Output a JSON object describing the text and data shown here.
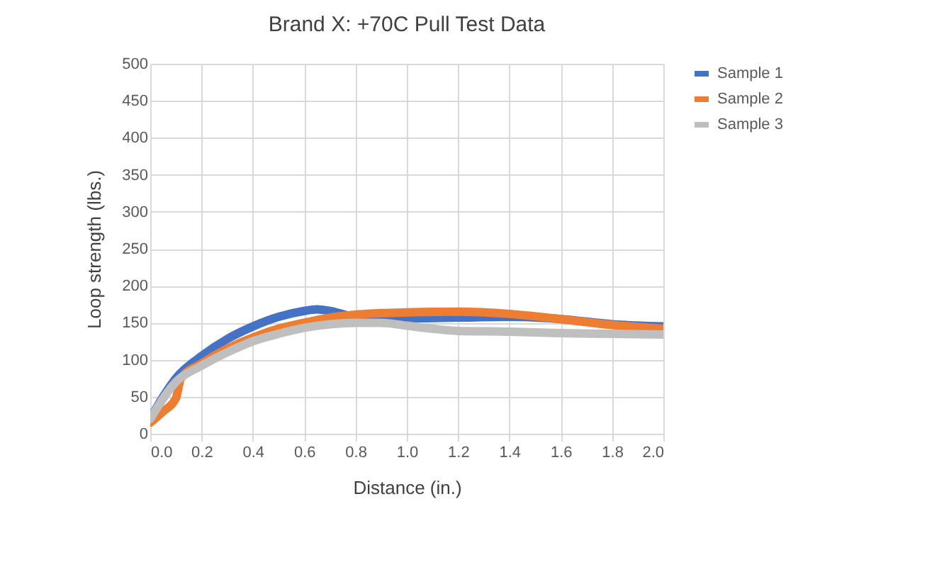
{
  "chart_data": {
    "type": "line",
    "title": "Brand X:  +70C Pull Test Data",
    "xlabel": "Distance (in.)",
    "ylabel": "Loop strength (lbs.)",
    "xlim": [
      0,
      2
    ],
    "xticks": [
      {
        "value": 0,
        "label": "0.0"
      },
      {
        "value": 0.2,
        "label": "0.2"
      },
      {
        "value": 0.4,
        "label": "0.4"
      },
      {
        "value": 0.6,
        "label": "0.6"
      },
      {
        "value": 0.8,
        "label": "0.8"
      },
      {
        "value": 1,
        "label": "1.0"
      },
      {
        "value": 1.2,
        "label": "1.2"
      },
      {
        "value": 1.4,
        "label": "1.4"
      },
      {
        "value": 1.6,
        "label": "1.6"
      },
      {
        "value": 1.8,
        "label": "1.8"
      },
      {
        "value": 2,
        "label": "2.0"
      }
    ],
    "ylim": [
      0,
      500
    ],
    "yticks": [
      0,
      50,
      100,
      150,
      200,
      250,
      300,
      350,
      400,
      450,
      500
    ],
    "grid": true,
    "legend": "right",
    "series": [
      {
        "name": "Sample 1",
        "color": "#4472c4",
        "x": [
          0,
          0.05,
          0.1,
          0.2,
          0.3,
          0.4,
          0.5,
          0.6,
          0.65,
          0.7,
          0.8,
          0.9,
          1.0,
          1.2,
          1.4,
          1.6,
          1.8,
          2.0
        ],
        "values": [
          20,
          50,
          75,
          105,
          128,
          145,
          158,
          166,
          168,
          166,
          158,
          157,
          156,
          157,
          158,
          155,
          148,
          145
        ]
      },
      {
        "name": "Sample 2",
        "color": "#ed7d31",
        "x": [
          0,
          0.05,
          0.1,
          0.12,
          0.2,
          0.3,
          0.4,
          0.5,
          0.6,
          0.7,
          0.8,
          0.9,
          1.0,
          1.2,
          1.4,
          1.6,
          1.8,
          2.0
        ],
        "values": [
          15,
          30,
          48,
          75,
          95,
          115,
          130,
          142,
          150,
          157,
          161,
          163,
          164,
          165,
          162,
          155,
          147,
          142
        ]
      },
      {
        "name": "Sample 3",
        "color": "#bfbfbf",
        "x": [
          0,
          0.1,
          0.2,
          0.3,
          0.4,
          0.5,
          0.6,
          0.7,
          0.8,
          0.9,
          1.0,
          1.1,
          1.2,
          1.4,
          1.6,
          1.8,
          2.0
        ],
        "values": [
          20,
          70,
          92,
          110,
          125,
          135,
          143,
          148,
          150,
          150,
          146,
          142,
          139,
          138,
          136,
          135,
          134
        ]
      }
    ]
  }
}
